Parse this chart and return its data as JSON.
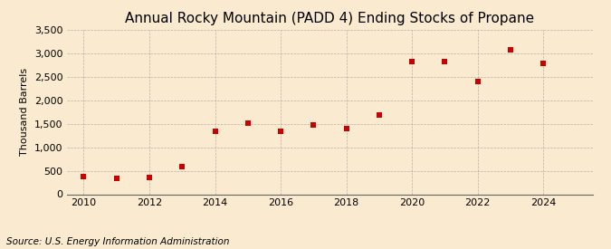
{
  "title": "Annual Rocky Mountain (PADD 4) Ending Stocks of Propane",
  "ylabel": "Thousand Barrels",
  "source": "Source: U.S. Energy Information Administration",
  "years": [
    2010,
    2011,
    2012,
    2013,
    2014,
    2015,
    2016,
    2017,
    2018,
    2019,
    2020,
    2021,
    2022,
    2023,
    2024
  ],
  "values": [
    370,
    345,
    355,
    590,
    1340,
    1520,
    1340,
    1480,
    1390,
    1680,
    2820,
    2820,
    2400,
    3080,
    2780
  ],
  "marker_color": "#cc0000",
  "marker": "s",
  "marker_size": 4,
  "background_color": "#faebd0",
  "grid_color": "#999999",
  "ylim": [
    0,
    3500
  ],
  "xlim": [
    2009.5,
    2025.5
  ],
  "yticks": [
    0,
    500,
    1000,
    1500,
    2000,
    2500,
    3000,
    3500
  ],
  "xticks": [
    2010,
    2012,
    2014,
    2016,
    2018,
    2020,
    2022,
    2024
  ],
  "title_fontsize": 11,
  "label_fontsize": 8,
  "tick_fontsize": 8,
  "source_fontsize": 7.5
}
